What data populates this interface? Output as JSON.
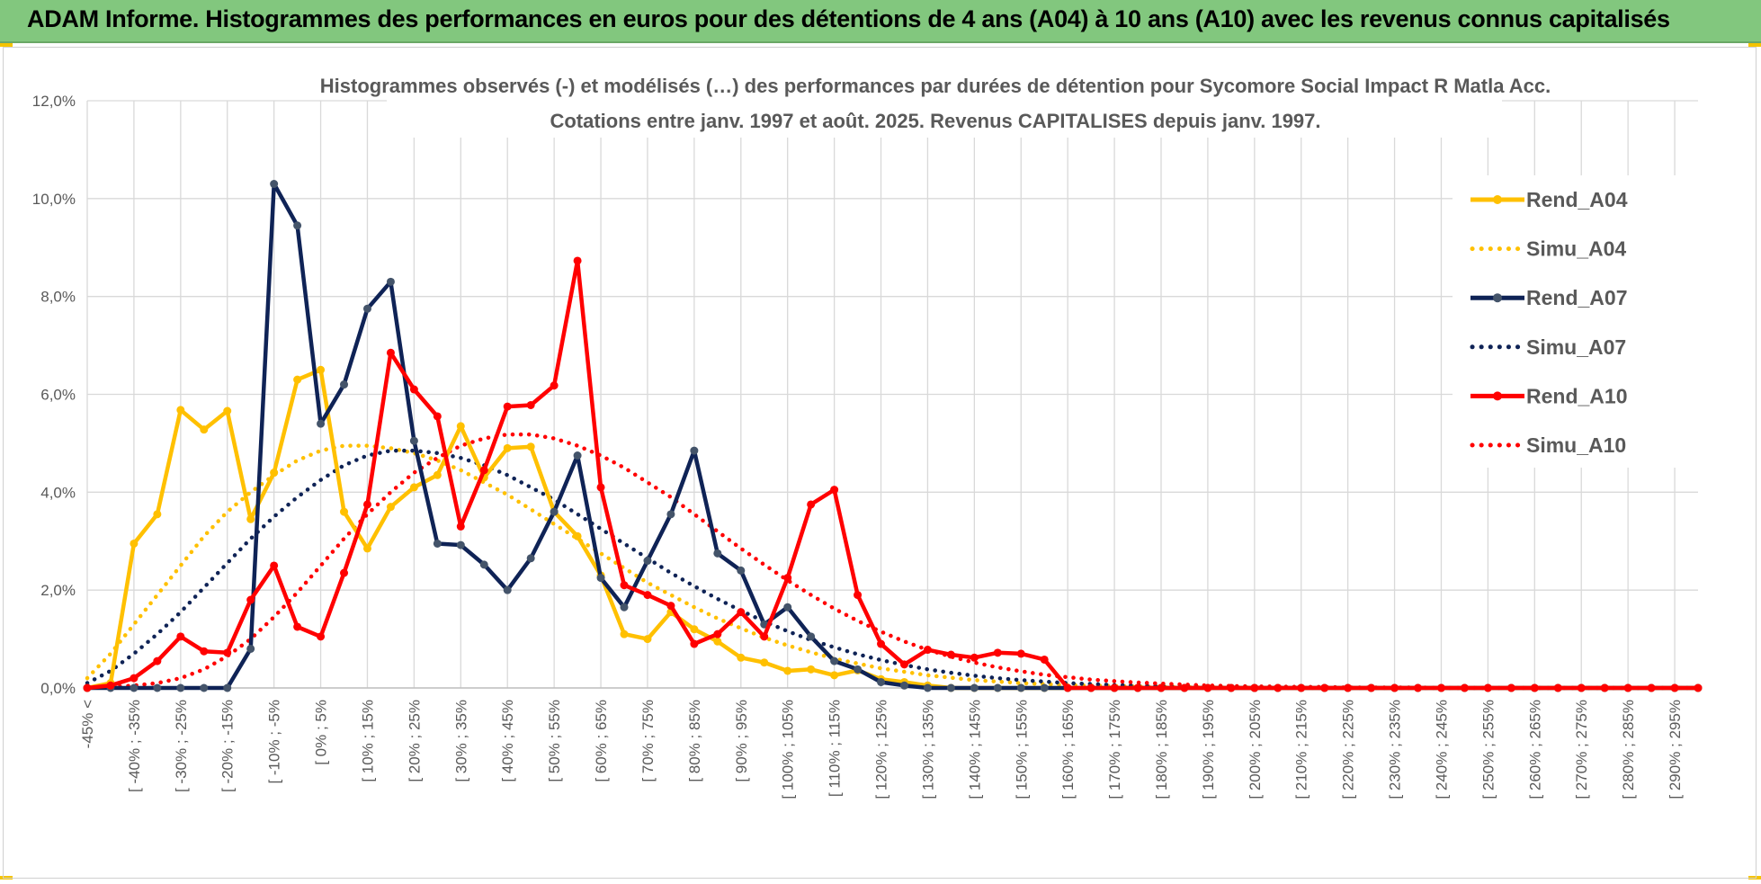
{
  "header": {
    "title": "ADAM Informe. Histogrammes des performances en euros pour des détentions de 4 ans (A04) à 10 ans (A10) avec les revenus connus capitalisés"
  },
  "chart_data": {
    "type": "line",
    "title": "Histogrammes observés (-) et modélisés (…) des performances par durées de détention pour Sycomore Social Impact R Matla Acc.",
    "subtitle": "Cotations entre janv. 1997 et août. 2025. Revenus CAPITALISES depuis janv. 1997.",
    "xlabel": "",
    "ylabel": "",
    "ylim": [
      0,
      12
    ],
    "y_ticks": [
      "0,0%",
      "2,0%",
      "4,0%",
      "6,0%",
      "8,0%",
      "10,0%",
      "12,0%"
    ],
    "y_tick_values": [
      0,
      2,
      4,
      6,
      8,
      10,
      12
    ],
    "grid": true,
    "legend_position": "right",
    "x_labels": [
      "-45% <",
      "[ -40% ; -35%",
      "[ -30% ; -25%",
      "[ -20% ; -15%",
      "[ -10% ; -5%",
      "[ 0% ; 5%",
      "[ 10% ; 15%",
      "[ 20% ; 25%",
      "[ 30% ; 35%",
      "[ 40% ; 45%",
      "[ 50% ; 55%",
      "[ 60% ; 65%",
      "[ 70% ; 75%",
      "[ 80% ; 85%",
      "[ 90% ; 95%",
      "[ 100% ; 105%",
      "[ 110% ; 115%",
      "[ 120% ; 125%",
      "[ 130% ; 135%",
      "[ 140% ; 145%",
      "[ 150% ; 155%",
      "[ 160% ; 165%",
      "[ 170% ; 175%",
      "[ 180% ; 185%",
      "[ 190% ; 195%",
      "[ 200% ; 205%",
      "[ 210% ; 215%",
      "[ 220% ; 225%",
      "[ 230% ; 235%",
      "[ 240% ; 245%",
      "[ 250% ; 255%",
      "[ 260% ; 265%",
      "[ 270% ; 275%",
      "[ 280% ; 285%",
      "[ 290% ; 295%"
    ],
    "x_label_positions": [
      0,
      2,
      4,
      6,
      8,
      10,
      12,
      14,
      16,
      18,
      20,
      22,
      24,
      26,
      28,
      30,
      32,
      34,
      36,
      38,
      40,
      42,
      44,
      46,
      48,
      50,
      52,
      54,
      56,
      58,
      60,
      62,
      64,
      66,
      68
    ],
    "x_count": 70,
    "series": [
      {
        "name": "Rend_A04",
        "color": "#ffc000",
        "style": "solid",
        "values": [
          0.0,
          0.1,
          2.95,
          3.55,
          5.68,
          5.28,
          5.66,
          3.45,
          4.4,
          6.3,
          6.5,
          3.6,
          2.85,
          3.7,
          4.1,
          4.35,
          5.35,
          4.3,
          4.9,
          4.93,
          3.6,
          3.1,
          2.3,
          1.1,
          1.0,
          1.55,
          1.2,
          0.95,
          0.62,
          0.52,
          0.35,
          0.38,
          0.26,
          0.36,
          0.18,
          0.12,
          0.05,
          0.0,
          0.0,
          0.0,
          0.0,
          0.0,
          0.0,
          0.0,
          0.0,
          0.0,
          0.0,
          0.0,
          0.0,
          0.0,
          0.0,
          0.0,
          0.0,
          0.0,
          0.0,
          0.0,
          0.0,
          0.0,
          0.0,
          0.0,
          0.0,
          0.0,
          0.0,
          0.0,
          0.0,
          0.0,
          0.0,
          0.0,
          0.0,
          0.0
        ]
      },
      {
        "name": "Simu_A04",
        "color": "#ffc000",
        "style": "dotted",
        "values": [
          0.2,
          0.7,
          1.3,
          1.9,
          2.5,
          3.1,
          3.6,
          4.0,
          4.35,
          4.65,
          4.85,
          4.95,
          4.95,
          4.9,
          4.8,
          4.65,
          4.45,
          4.2,
          3.95,
          3.65,
          3.35,
          3.05,
          2.75,
          2.45,
          2.15,
          1.9,
          1.65,
          1.42,
          1.22,
          1.03,
          0.87,
          0.73,
          0.6,
          0.5,
          0.4,
          0.33,
          0.26,
          0.21,
          0.16,
          0.13,
          0.1,
          0.08,
          0.06,
          0.05,
          0.04,
          0.03,
          0.02,
          0.02,
          0.01,
          0.01,
          0.01,
          0.0,
          0.0,
          0.0,
          0.0,
          0.0,
          0.0,
          0.0,
          0.0,
          0.0,
          0.0,
          0.0,
          0.0,
          0.0,
          0.0,
          0.0,
          0.0,
          0.0,
          0.0,
          0.0
        ]
      },
      {
        "name": "Rend_A07",
        "color": "#0f2356",
        "style": "solid",
        "values": [
          0.0,
          0.0,
          0.0,
          0.0,
          0.0,
          0.0,
          0.0,
          0.8,
          10.3,
          9.45,
          5.4,
          6.2,
          7.75,
          8.3,
          5.05,
          2.95,
          2.92,
          2.52,
          2.0,
          2.65,
          3.6,
          4.75,
          2.25,
          1.65,
          2.6,
          3.55,
          4.85,
          2.75,
          2.4,
          1.3,
          1.65,
          1.05,
          0.55,
          0.38,
          0.12,
          0.05,
          0.0,
          0.0,
          0.0,
          0.0,
          0.0,
          0.0,
          0.0,
          0.0,
          0.0,
          0.0,
          0.0,
          0.0,
          0.0,
          0.0,
          0.0,
          0.0,
          0.0,
          0.0,
          0.0,
          0.0,
          0.0,
          0.0,
          0.0,
          0.0,
          0.0,
          0.0,
          0.0,
          0.0,
          0.0,
          0.0,
          0.0,
          0.0,
          0.0,
          0.0
        ]
      },
      {
        "name": "Simu_A07",
        "color": "#0f2356",
        "style": "dotted",
        "values": [
          0.1,
          0.35,
          0.7,
          1.1,
          1.55,
          2.05,
          2.55,
          3.05,
          3.5,
          3.9,
          4.25,
          4.55,
          4.75,
          4.85,
          4.85,
          4.8,
          4.7,
          4.55,
          4.35,
          4.1,
          3.85,
          3.55,
          3.25,
          2.95,
          2.65,
          2.35,
          2.08,
          1.82,
          1.58,
          1.36,
          1.16,
          0.98,
          0.83,
          0.69,
          0.57,
          0.47,
          0.38,
          0.31,
          0.25,
          0.2,
          0.16,
          0.13,
          0.1,
          0.08,
          0.06,
          0.05,
          0.04,
          0.03,
          0.02,
          0.02,
          0.01,
          0.01,
          0.01,
          0.0,
          0.0,
          0.0,
          0.0,
          0.0,
          0.0,
          0.0,
          0.0,
          0.0,
          0.0,
          0.0,
          0.0,
          0.0,
          0.0,
          0.0,
          0.0,
          0.0
        ]
      },
      {
        "name": "Rend_A10",
        "color": "#ff0000",
        "style": "solid",
        "values": [
          0.0,
          0.05,
          0.2,
          0.55,
          1.05,
          0.75,
          0.72,
          1.8,
          2.5,
          1.25,
          1.05,
          2.35,
          3.75,
          6.85,
          6.1,
          5.55,
          3.3,
          4.45,
          5.75,
          5.78,
          6.18,
          8.73,
          4.1,
          2.1,
          1.9,
          1.68,
          0.9,
          1.1,
          1.55,
          1.05,
          2.25,
          3.75,
          4.05,
          1.9,
          0.9,
          0.48,
          0.78,
          0.68,
          0.62,
          0.72,
          0.7,
          0.58,
          0.0,
          0.0,
          0.0,
          0.0,
          0.0,
          0.0,
          0.0,
          0.0,
          0.0,
          0.0,
          0.0,
          0.0,
          0.0,
          0.0,
          0.0,
          0.0,
          0.0,
          0.0,
          0.0,
          0.0,
          0.0,
          0.0,
          0.0,
          0.0,
          0.0,
          0.0,
          0.0,
          0.0
        ]
      },
      {
        "name": "Simu_A10",
        "color": "#ff0000",
        "style": "dotted",
        "values": [
          0.0,
          0.02,
          0.05,
          0.1,
          0.2,
          0.38,
          0.65,
          1.0,
          1.45,
          1.95,
          2.5,
          3.05,
          3.55,
          4.0,
          4.4,
          4.7,
          4.95,
          5.1,
          5.18,
          5.18,
          5.1,
          4.95,
          4.75,
          4.5,
          4.2,
          3.9,
          3.55,
          3.2,
          2.85,
          2.52,
          2.2,
          1.9,
          1.62,
          1.37,
          1.15,
          0.95,
          0.78,
          0.64,
          0.52,
          0.42,
          0.34,
          0.27,
          0.22,
          0.17,
          0.14,
          0.11,
          0.09,
          0.07,
          0.05,
          0.04,
          0.03,
          0.03,
          0.02,
          0.02,
          0.01,
          0.01,
          0.01,
          0.01,
          0.0,
          0.0,
          0.0,
          0.0,
          0.0,
          0.0,
          0.0,
          0.0,
          0.0,
          0.0,
          0.0,
          0.0
        ]
      }
    ]
  }
}
